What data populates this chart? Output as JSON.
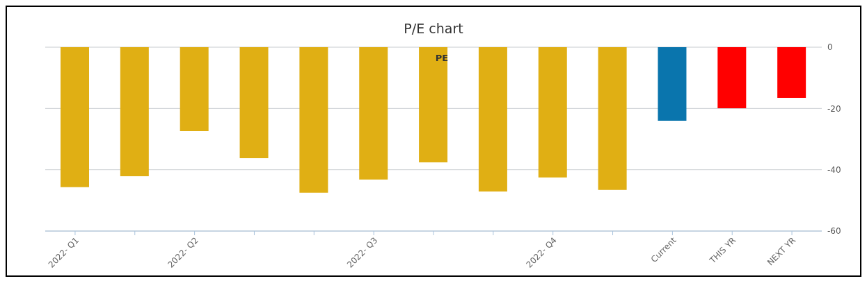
{
  "chart_data": {
    "type": "bar",
    "title": "P/E chart",
    "categories": [
      "2022- Q1",
      null,
      "2022- Q2",
      null,
      null,
      "2022- Q3",
      null,
      null,
      "2022- Q4",
      null,
      "Current",
      "THIS YR",
      "NEXT YR"
    ],
    "series": [
      {
        "name": "PE",
        "values": [
          -45.7,
          -42.1,
          -27.4,
          -36.2,
          -47.5,
          -43.2,
          -37.6,
          -47.1,
          -42.5,
          -46.6,
          -24,
          -19.9,
          -16.5
        ],
        "colors": [
          "#e0af14",
          "#e0af14",
          "#e0af14",
          "#e0af14",
          "#e0af14",
          "#e0af14",
          "#e0af14",
          "#e0af14",
          "#e0af14",
          "#e0af14",
          "#0a75ad",
          "#ff0000",
          "#ff0000"
        ]
      }
    ],
    "ylim": [
      -60,
      0
    ],
    "yticks": [
      0,
      -20,
      -40,
      -60
    ],
    "grid": "y",
    "legend": "top"
  }
}
